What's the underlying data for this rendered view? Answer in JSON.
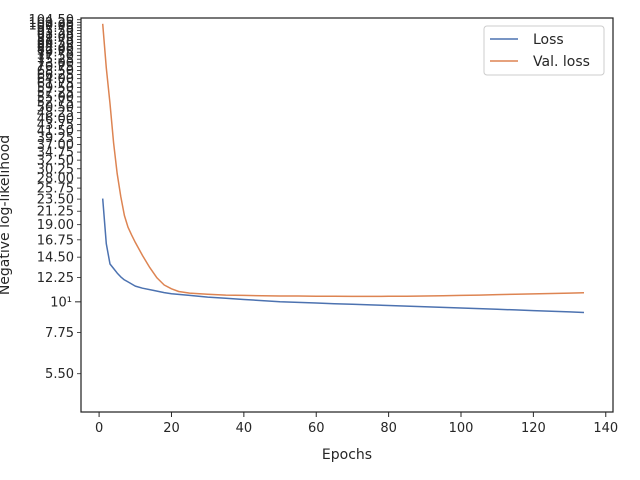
{
  "chart_data": {
    "type": "line",
    "title": "",
    "xlabel": "Epochs",
    "ylabel": "Negative log-likelihood",
    "xlim": [
      -5,
      142
    ],
    "ylim": [
      4.0,
      106.0
    ],
    "yscale": "log",
    "grid": false,
    "legend": "top-right",
    "x_ticks": [
      0,
      20,
      40,
      60,
      80,
      100,
      120,
      140
    ],
    "x_tick_labels": [
      "0",
      "20",
      "40",
      "60",
      "80",
      "100",
      "120",
      "140"
    ],
    "y_ticks": [
      5.5,
      7.75,
      12.25,
      14.5,
      16.75,
      19.0,
      21.25,
      23.5,
      25.75,
      28.0,
      30.25,
      32.5,
      34.75,
      37.0,
      39.25,
      41.5,
      43.75,
      46.0,
      48.25,
      50.5,
      52.75,
      55.0,
      57.25,
      59.5,
      61.75,
      64.0,
      66.25,
      68.5,
      70.75,
      73.0,
      75.25,
      77.5,
      79.75,
      82.0,
      84.25,
      86.5,
      88.75,
      91.0,
      93.25,
      95.5,
      97.75,
      100.0,
      102.25,
      104.5
    ],
    "y_tick_labels": [
      "5.50",
      "7.75",
      "12.25",
      "14.50",
      "16.75",
      "19.00",
      "21.25",
      "23.50",
      "25.75",
      "28.00",
      "30.25",
      "32.50",
      "34.75",
      "37.00",
      "39.25",
      "41.50",
      "43.75",
      "46.00",
      "48.25",
      "50.50",
      "52.75",
      "55.00",
      "57.25",
      "59.50",
      "61.75",
      "64.00",
      "66.25",
      "68.50",
      "70.75",
      "73.00",
      "75.25",
      "77.50",
      "79.75",
      "82.00",
      "84.25",
      "86.50",
      "88.75",
      "91.00",
      "93.25",
      "95.50",
      "97.75",
      "100.00",
      "102.25",
      "104.50"
    ],
    "y_major_tick": {
      "value": 10,
      "label": "10¹"
    },
    "series": [
      {
        "name": "Loss",
        "color": "#4c72b0",
        "x": [
          1,
          2,
          3,
          4,
          5,
          6,
          7,
          8,
          10,
          12,
          15,
          18,
          20,
          25,
          30,
          35,
          40,
          45,
          50,
          55,
          60,
          65,
          70,
          75,
          80,
          85,
          90,
          95,
          100,
          105,
          110,
          115,
          120,
          125,
          130,
          134
        ],
        "y": [
          23.6,
          16.2,
          13.7,
          13.2,
          12.7,
          12.3,
          12.0,
          11.8,
          11.4,
          11.2,
          11.0,
          10.8,
          10.7,
          10.55,
          10.4,
          10.3,
          10.2,
          10.1,
          10.0,
          9.95,
          9.9,
          9.85,
          9.8,
          9.75,
          9.7,
          9.65,
          9.6,
          9.55,
          9.5,
          9.45,
          9.4,
          9.35,
          9.3,
          9.25,
          9.2,
          9.15
        ]
      },
      {
        "name": "Val. loss",
        "color": "#dd8452",
        "x": [
          1,
          2,
          3,
          4,
          5,
          6,
          7,
          8,
          9,
          10,
          12,
          14,
          16,
          18,
          20,
          22,
          25,
          30,
          35,
          40,
          45,
          50,
          55,
          60,
          65,
          70,
          75,
          80,
          85,
          90,
          95,
          100,
          105,
          110,
          115,
          120,
          125,
          130,
          134
        ],
        "y": [
          101.0,
          70.0,
          52.0,
          37.5,
          29.0,
          24.0,
          20.5,
          18.6,
          17.4,
          16.4,
          14.7,
          13.3,
          12.2,
          11.5,
          11.15,
          10.9,
          10.75,
          10.65,
          10.58,
          10.55,
          10.52,
          10.5,
          10.5,
          10.48,
          10.47,
          10.46,
          10.46,
          10.47,
          10.48,
          10.5,
          10.52,
          10.55,
          10.58,
          10.62,
          10.65,
          10.68,
          10.72,
          10.75,
          10.78
        ]
      }
    ]
  }
}
